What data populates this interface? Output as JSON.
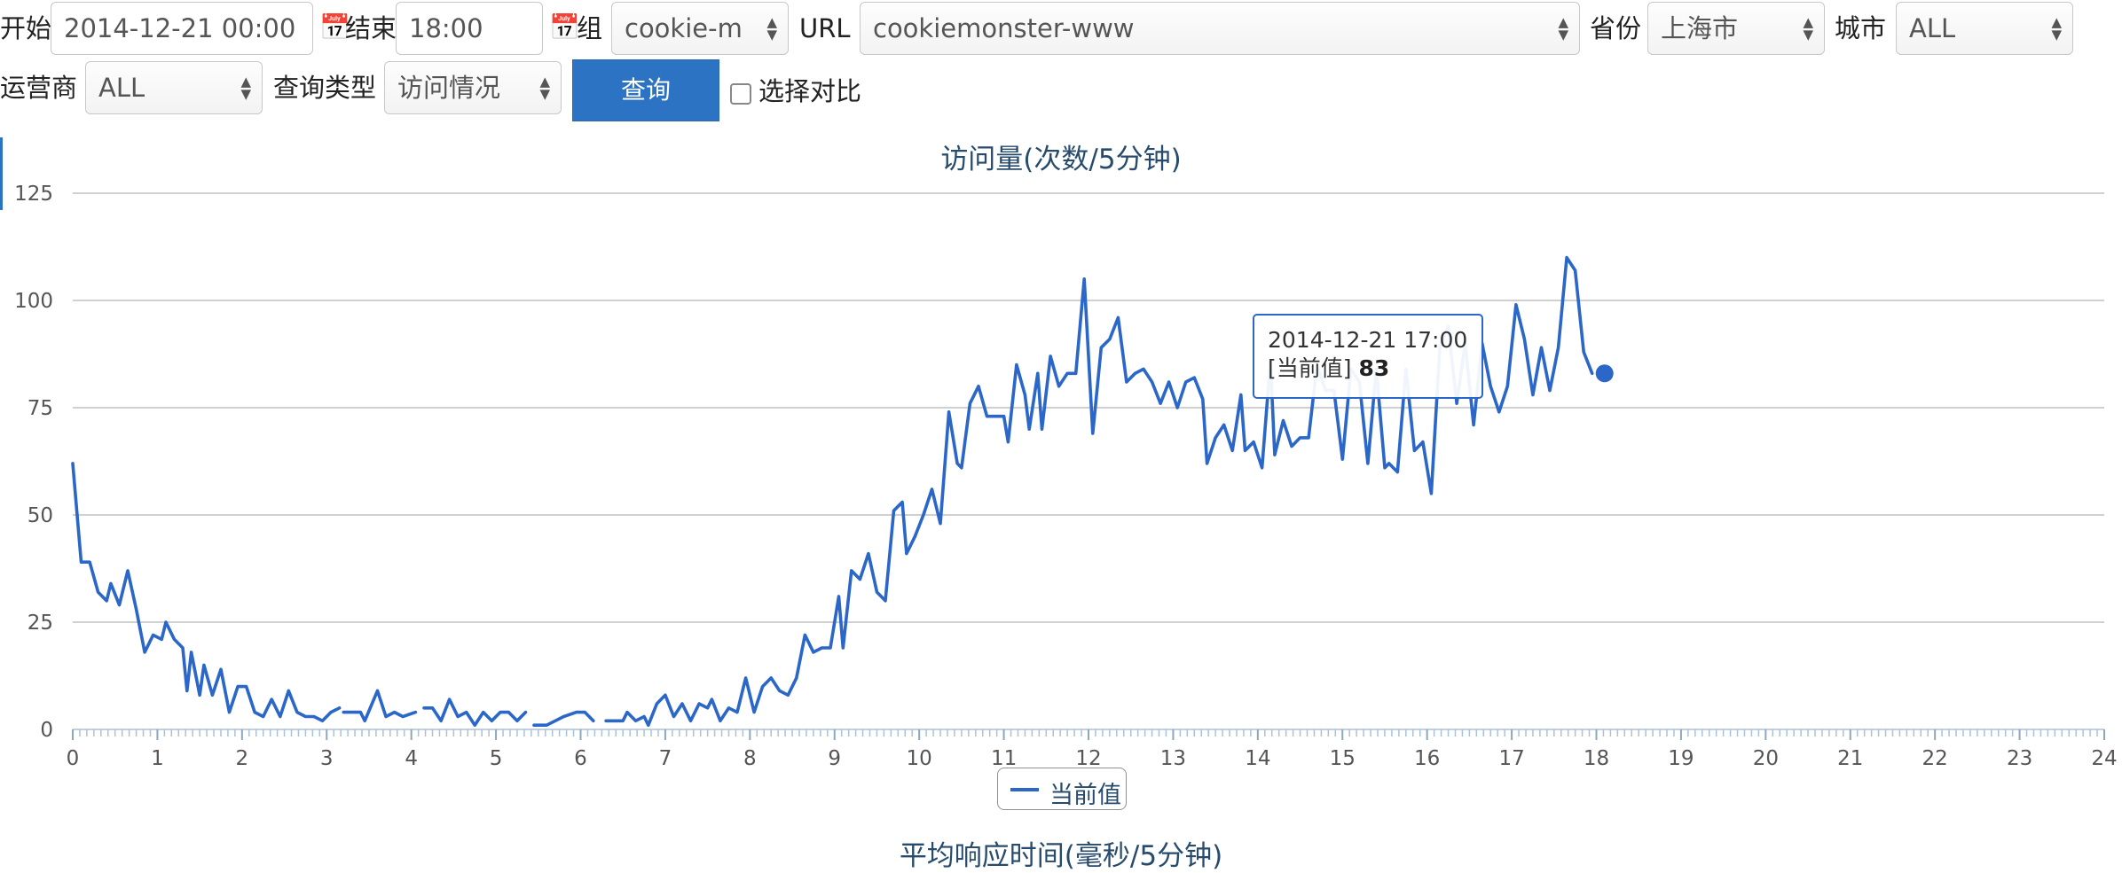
{
  "form": {
    "start_label": "开始",
    "start_value": "2014-12-21 00:00",
    "end_label": "结束",
    "end_value": "18:00",
    "group_label": "组",
    "group_value": "cookie-m",
    "url_label": "URL",
    "url_value": "cookiemonster-www",
    "province_label": "省份",
    "province_value": "上海市",
    "city_label": "城市",
    "city_value": "ALL",
    "isp_label": "运营商",
    "isp_value": "ALL",
    "query_type_label": "查询类型",
    "query_type_value": "访问情况",
    "query_button": "查询",
    "compare_label": "选择对比",
    "compare_checked": false
  },
  "icons": {
    "calendar": "calendar-icon",
    "select_arrows": "updown-arrows-icon"
  },
  "colors": {
    "series": "#2b67c9",
    "button": "#2d73c3",
    "title": "#274b6d",
    "grid": "#c0c0c0"
  },
  "tooltip": {
    "time": "2014-12-21 17:00",
    "series_label": "[当前值]",
    "value": "83"
  },
  "second_chart_title": "平均响应时间(毫秒/5分钟)",
  "chart_data": {
    "type": "line",
    "title": "访问量(次数/5分钟)",
    "xlabel": "",
    "ylabel": "",
    "xlim": [
      0,
      24
    ],
    "ylim": [
      0,
      125
    ],
    "xticks": [
      0,
      1,
      2,
      3,
      4,
      5,
      6,
      7,
      8,
      9,
      10,
      11,
      12,
      13,
      14,
      15,
      16,
      17,
      18,
      19,
      20,
      21,
      22,
      23,
      24
    ],
    "yticks": [
      0,
      25,
      50,
      75,
      100,
      125
    ],
    "grid": true,
    "legend": "bottom-center",
    "series": [
      {
        "name": "当前值",
        "segments": [
          [
            [
              0,
              62
            ],
            [
              0.1,
              39
            ],
            [
              0.2,
              39
            ],
            [
              0.3,
              32
            ],
            [
              0.4,
              30
            ],
            [
              0.45,
              34
            ],
            [
              0.55,
              29
            ],
            [
              0.65,
              37
            ],
            [
              0.75,
              28
            ],
            [
              0.85,
              18
            ],
            [
              0.95,
              22
            ],
            [
              1.05,
              21
            ],
            [
              1.1,
              25
            ],
            [
              1.2,
              21
            ],
            [
              1.3,
              19
            ],
            [
              1.35,
              9
            ],
            [
              1.4,
              18
            ],
            [
              1.5,
              8
            ],
            [
              1.55,
              15
            ],
            [
              1.65,
              8
            ],
            [
              1.75,
              14
            ],
            [
              1.85,
              4
            ],
            [
              1.95,
              10
            ],
            [
              2.05,
              10
            ],
            [
              2.15,
              4
            ],
            [
              2.25,
              3
            ],
            [
              2.35,
              7
            ],
            [
              2.45,
              3
            ],
            [
              2.55,
              9
            ],
            [
              2.65,
              4
            ],
            [
              2.75,
              3
            ],
            [
              2.85,
              3
            ],
            [
              2.95,
              2
            ],
            [
              3.05,
              4
            ],
            [
              3.15,
              5
            ]
          ],
          [
            [
              3.2,
              4
            ],
            [
              3.4,
              4
            ],
            [
              3.45,
              2
            ],
            [
              3.6,
              9
            ],
            [
              3.7,
              3
            ],
            [
              3.8,
              4
            ],
            [
              3.9,
              3
            ],
            [
              4.05,
              4
            ]
          ],
          [
            [
              4.15,
              5
            ],
            [
              4.25,
              5
            ],
            [
              4.35,
              2
            ],
            [
              4.45,
              7
            ],
            [
              4.55,
              3
            ],
            [
              4.65,
              4
            ],
            [
              4.75,
              1
            ],
            [
              4.85,
              4
            ],
            [
              4.95,
              2
            ],
            [
              5.05,
              4
            ],
            [
              5.15,
              4
            ],
            [
              5.25,
              2
            ],
            [
              5.35,
              4
            ]
          ],
          [
            [
              5.45,
              1
            ],
            [
              5.6,
              1
            ],
            [
              5.7,
              2
            ],
            [
              5.8,
              3
            ],
            [
              5.95,
              4
            ],
            [
              6.05,
              4
            ],
            [
              6.15,
              2
            ]
          ],
          [
            [
              6.3,
              2
            ],
            [
              6.5,
              2
            ],
            [
              6.55,
              4
            ],
            [
              6.65,
              2
            ],
            [
              6.75,
              3
            ],
            [
              6.8,
              1
            ],
            [
              6.9,
              6
            ],
            [
              7.0,
              8
            ],
            [
              7.1,
              3
            ],
            [
              7.2,
              6
            ],
            [
              7.3,
              2
            ],
            [
              7.4,
              6
            ],
            [
              7.5,
              5
            ],
            [
              7.55,
              7
            ],
            [
              7.65,
              2
            ],
            [
              7.75,
              5
            ],
            [
              7.85,
              4
            ],
            [
              7.95,
              12
            ],
            [
              8.05,
              4
            ],
            [
              8.15,
              10
            ],
            [
              8.25,
              12
            ],
            [
              8.35,
              9
            ],
            [
              8.45,
              8
            ],
            [
              8.55,
              12
            ],
            [
              8.65,
              22
            ],
            [
              8.75,
              18
            ],
            [
              8.85,
              19
            ],
            [
              8.95,
              19
            ],
            [
              9.05,
              31
            ],
            [
              9.1,
              19
            ],
            [
              9.2,
              37
            ],
            [
              9.3,
              35
            ],
            [
              9.4,
              41
            ],
            [
              9.5,
              32
            ],
            [
              9.6,
              30
            ],
            [
              9.7,
              51
            ],
            [
              9.8,
              53
            ],
            [
              9.85,
              41
            ],
            [
              9.95,
              45
            ],
            [
              10.05,
              50
            ],
            [
              10.15,
              56
            ],
            [
              10.25,
              48
            ],
            [
              10.35,
              74
            ],
            [
              10.45,
              62
            ],
            [
              10.5,
              61
            ],
            [
              10.6,
              76
            ],
            [
              10.7,
              80
            ],
            [
              10.8,
              73
            ],
            [
              10.9,
              73
            ],
            [
              11.0,
              73
            ],
            [
              11.05,
              67
            ],
            [
              11.15,
              85
            ],
            [
              11.25,
              78
            ],
            [
              11.3,
              70
            ],
            [
              11.4,
              83
            ],
            [
              11.45,
              70
            ],
            [
              11.55,
              87
            ],
            [
              11.65,
              80
            ],
            [
              11.75,
              83
            ],
            [
              11.85,
              83
            ],
            [
              11.95,
              105
            ],
            [
              12.05,
              69
            ],
            [
              12.15,
              89
            ],
            [
              12.25,
              91
            ],
            [
              12.35,
              96
            ],
            [
              12.45,
              81
            ],
            [
              12.55,
              83
            ],
            [
              12.65,
              84
            ],
            [
              12.75,
              81
            ],
            [
              12.85,
              76
            ],
            [
              12.95,
              81
            ],
            [
              13.05,
              75
            ],
            [
              13.15,
              81
            ],
            [
              13.25,
              82
            ],
            [
              13.35,
              77
            ],
            [
              13.4,
              62
            ],
            [
              13.5,
              68
            ],
            [
              13.6,
              71
            ],
            [
              13.7,
              65
            ],
            [
              13.8,
              78
            ],
            [
              13.85,
              65
            ],
            [
              13.95,
              67
            ],
            [
              14.05,
              61
            ],
            [
              14.15,
              86
            ],
            [
              14.2,
              64
            ],
            [
              14.3,
              72
            ],
            [
              14.4,
              66
            ],
            [
              14.5,
              68
            ],
            [
              14.6,
              68
            ],
            [
              14.7,
              85
            ],
            [
              14.8,
              79
            ],
            [
              14.9,
              79
            ],
            [
              15.0,
              63
            ],
            [
              15.1,
              84
            ],
            [
              15.2,
              81
            ],
            [
              15.3,
              62
            ],
            [
              15.4,
              84
            ],
            [
              15.5,
              61
            ],
            [
              15.55,
              62
            ],
            [
              15.65,
              60
            ],
            [
              15.75,
              84
            ],
            [
              15.85,
              65
            ],
            [
              15.95,
              67
            ],
            [
              16.05,
              55
            ],
            [
              16.15,
              89
            ],
            [
              16.25,
              94
            ],
            [
              16.35,
              76
            ],
            [
              16.45,
              90
            ],
            [
              16.55,
              71
            ],
            [
              16.65,
              90
            ],
            [
              16.75,
              80
            ],
            [
              16.85,
              74
            ],
            [
              16.95,
              80
            ],
            [
              17.05,
              99
            ],
            [
              17.15,
              91
            ],
            [
              17.25,
              78
            ],
            [
              17.35,
              89
            ],
            [
              17.45,
              79
            ],
            [
              17.55,
              89
            ],
            [
              17.65,
              110
            ],
            [
              17.75,
              107
            ],
            [
              17.85,
              88
            ],
            [
              17.95,
              83
            ]
          ]
        ]
      }
    ],
    "highlight_point": {
      "x": 17.95,
      "y": 83
    }
  }
}
